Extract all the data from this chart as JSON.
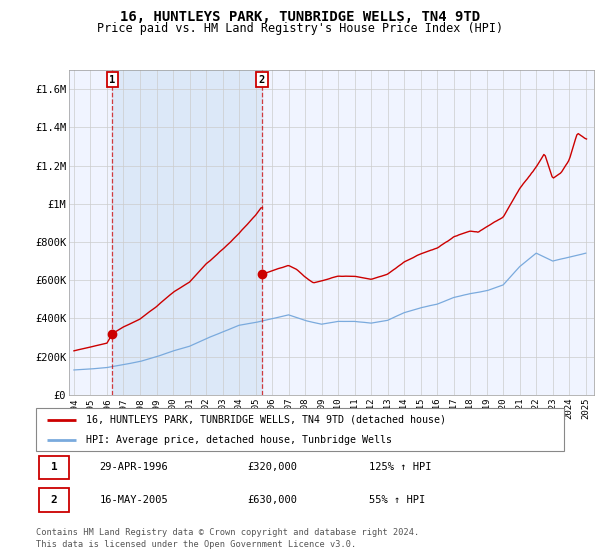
{
  "title": "16, HUNTLEYS PARK, TUNBRIDGE WELLS, TN4 9TD",
  "subtitle": "Price paid vs. HM Land Registry's House Price Index (HPI)",
  "title_fontsize": 10,
  "subtitle_fontsize": 8.5,
  "ylim": [
    0,
    1700000
  ],
  "yticks": [
    0,
    200000,
    400000,
    600000,
    800000,
    1000000,
    1200000,
    1400000,
    1600000
  ],
  "ytick_labels": [
    "£0",
    "£200K",
    "£400K",
    "£600K",
    "£800K",
    "£1M",
    "£1.2M",
    "£1.4M",
    "£1.6M"
  ],
  "xlim_start": 1993.7,
  "xlim_end": 2025.5,
  "xticks": [
    1994,
    1995,
    1996,
    1997,
    1998,
    1999,
    2000,
    2001,
    2002,
    2003,
    2004,
    2005,
    2006,
    2007,
    2008,
    2009,
    2010,
    2011,
    2012,
    2013,
    2014,
    2015,
    2016,
    2017,
    2018,
    2019,
    2020,
    2021,
    2022,
    2023,
    2024,
    2025
  ],
  "sale1_year": 1996.33,
  "sale1_price": 320000,
  "sale1_label": "1",
  "sale1_date": "29-APR-1996",
  "sale1_hpi_pct": "125% ↑ HPI",
  "sale2_year": 2005.38,
  "sale2_price": 630000,
  "sale2_label": "2",
  "sale2_date": "16-MAY-2005",
  "sale2_hpi_pct": "55% ↑ HPI",
  "legend_line1": "16, HUNTLEYS PARK, TUNBRIDGE WELLS, TN4 9TD (detached house)",
  "legend_line2": "HPI: Average price, detached house, Tunbridge Wells",
  "footnote1": "Contains HM Land Registry data © Crown copyright and database right 2024.",
  "footnote2": "This data is licensed under the Open Government Licence v3.0.",
  "grid_color": "#cccccc",
  "red_line_color": "#cc0000",
  "blue_line_color": "#7aaadd",
  "plot_bg_color": "#f0f4ff",
  "shade_color": "#dce8f8"
}
